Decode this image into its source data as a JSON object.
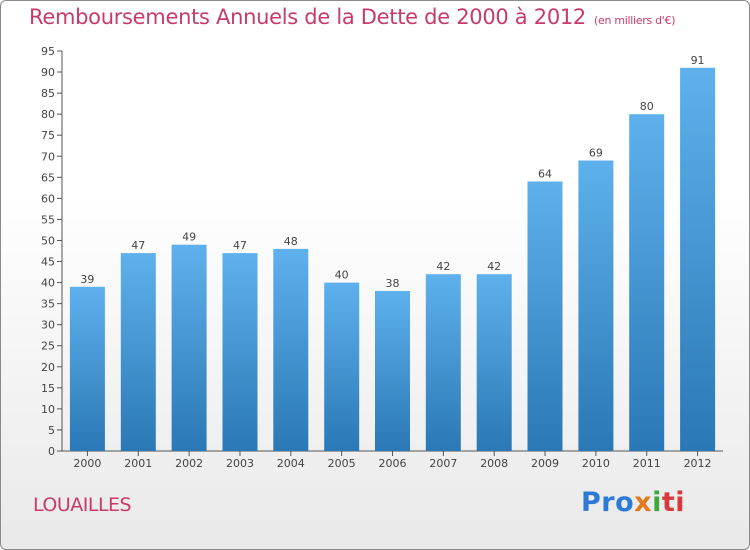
{
  "header": {
    "title": "Remboursements Annuels de la Dette de 2000 à 2012",
    "unit": "(en milliers d'€)"
  },
  "footer": {
    "commune": "LOUAILLES",
    "logo_text": "Proxiti",
    "logo_parts": [
      "Pro",
      "x",
      "i",
      "ti"
    ]
  },
  "colors": {
    "title": "#c83a6a",
    "bar_top": "#5eb1ec",
    "bar_bottom": "#2a78b5"
  },
  "chart_data": {
    "type": "bar",
    "title": "Remboursements Annuels de la Dette de 2000 à 2012",
    "categories": [
      "2000",
      "2001",
      "2002",
      "2003",
      "2004",
      "2005",
      "2006",
      "2007",
      "2008",
      "2009",
      "2010",
      "2011",
      "2012"
    ],
    "values": [
      39,
      47,
      49,
      47,
      48,
      40,
      38,
      42,
      42,
      64,
      69,
      80,
      91
    ],
    "ylim": [
      0,
      95
    ],
    "yticks": [
      0,
      5,
      10,
      15,
      20,
      25,
      30,
      35,
      40,
      45,
      50,
      55,
      60,
      65,
      70,
      75,
      80,
      85,
      90,
      95
    ],
    "xlabel": "",
    "ylabel": "",
    "grid": false,
    "legend": "none"
  }
}
